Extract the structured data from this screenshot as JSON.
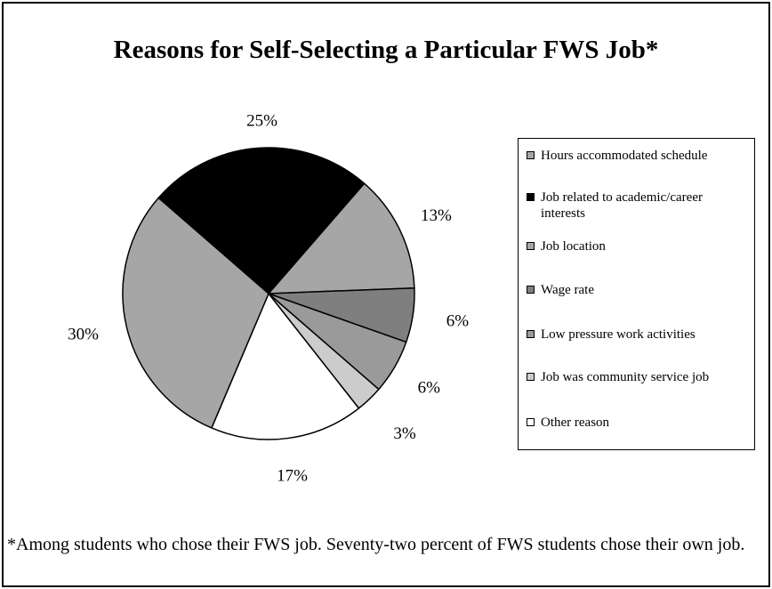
{
  "title": "Reasons for Self-Selecting a Particular FWS Job*",
  "footnote": "*Among students who chose their FWS job.  Seventy-two percent of FWS students chose their own job.",
  "chart_data": {
    "type": "pie",
    "title": "Reasons for Self-Selecting a Particular FWS Job*",
    "legend_position": "right",
    "slices": [
      {
        "label": "Hours accommodated schedule",
        "value": 30,
        "value_label": "30%",
        "color": "#a6a6a6"
      },
      {
        "label": "Job related to academic/career interests",
        "value": 25,
        "value_label": "25%",
        "color": "#000000"
      },
      {
        "label": "Job location",
        "value": 13,
        "value_label": "13%",
        "color": "#a6a6a6"
      },
      {
        "label": "Wage rate",
        "value": 6,
        "value_label": "6%",
        "color": "#7f7f7f"
      },
      {
        "label": "Low pressure work activities",
        "value": 6,
        "value_label": "6%",
        "color": "#9a9a9a"
      },
      {
        "label": "Job was community service job",
        "value": 3,
        "value_label": "3%",
        "color": "#cccccc"
      },
      {
        "label": "Other reason",
        "value": 17,
        "value_label": "17%",
        "color": "#ffffff"
      }
    ]
  }
}
